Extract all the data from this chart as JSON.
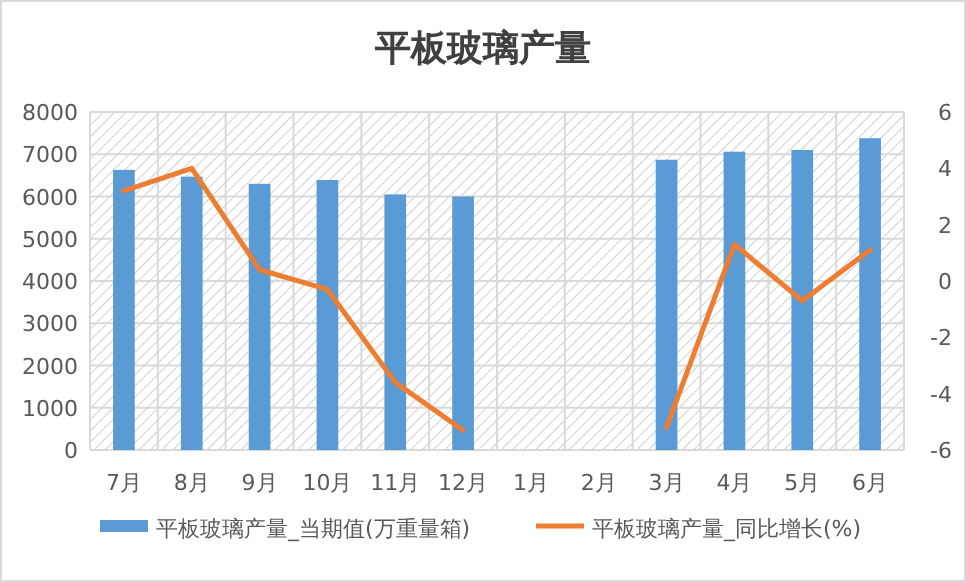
{
  "chart_data": {
    "type": "bar",
    "title": "平板玻璃产量",
    "categories": [
      "7月",
      "8月",
      "9月",
      "10月",
      "11月",
      "12月",
      "1月",
      "2月",
      "3月",
      "4月",
      "5月",
      "6月"
    ],
    "series": [
      {
        "name": "平板玻璃产量_当期值(万重量箱)",
        "color": "#5b9bd5",
        "values": [
          6630,
          6470,
          6300,
          6390,
          6050,
          6000,
          null,
          null,
          6870,
          7060,
          7100,
          7380
        ]
      },
      {
        "name": "平板玻璃产量_同比增长(%)",
        "type": "line",
        "axis": "y2",
        "color": "#ed7d31",
        "values": [
          3.2,
          4.0,
          0.4,
          -0.3,
          -3.6,
          -5.3,
          null,
          null,
          -5.2,
          1.3,
          -0.7,
          1.1
        ]
      }
    ],
    "ylim": [
      0,
      8000
    ],
    "yticks": [
      0,
      1000,
      2000,
      3000,
      4000,
      5000,
      6000,
      7000,
      8000
    ],
    "y2lim": [
      -6,
      6
    ],
    "y2ticks": [
      -6,
      -4,
      -2,
      0,
      2,
      4,
      6
    ],
    "grid": true,
    "legend": "bottom"
  }
}
